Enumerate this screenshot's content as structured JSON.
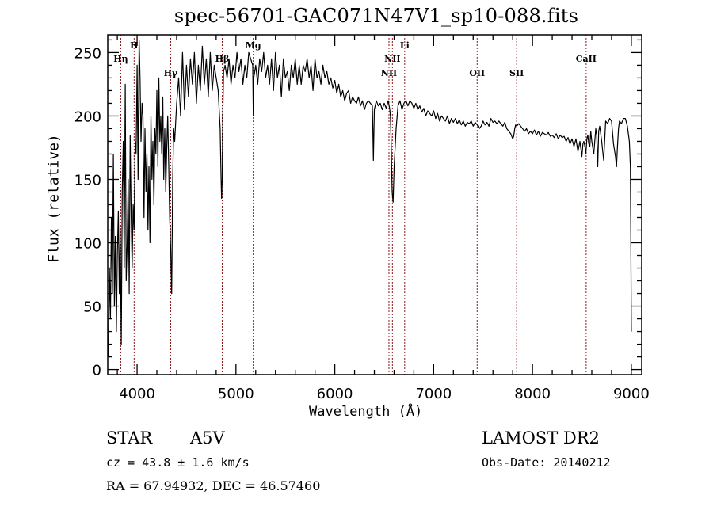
{
  "chart_data": {
    "type": "line",
    "title": "spec-56701-GAC071N47V1_sp10-088.fits",
    "xlabel": "Wavelength (Å)",
    "ylabel": "Flux (relative)",
    "xlim": [
      3703,
      9105
    ],
    "ylim": [
      -4,
      264
    ],
    "xticks": [
      4000,
      5000,
      6000,
      7000,
      8000,
      9000
    ],
    "yticks": [
      0,
      50,
      100,
      150,
      200,
      250
    ],
    "x_minor_step": 200,
    "y_minor_step": 10,
    "grid": false,
    "legend": "none",
    "line_color": "#000000",
    "marker_line_color": "#8b1a1a",
    "spectral_lines": [
      {
        "label": "Hη",
        "wavelength": 3835,
        "label_row": 2
      },
      {
        "label": "H",
        "wavelength": 3970,
        "label_row": 1
      },
      {
        "label": "Hγ",
        "wavelength": 4340,
        "label_row": 3
      },
      {
        "label": "Hβ",
        "wavelength": 4861,
        "label_row": 2
      },
      {
        "label": "Mg",
        "wavelength": 5175,
        "label_row": 1
      },
      {
        "label": "NII",
        "wavelength": 6548,
        "label_row": 3
      },
      {
        "label": "NII",
        "wavelength": 6583,
        "label_row": 2
      },
      {
        "label": "Li",
        "wavelength": 6707,
        "label_row": 1
      },
      {
        "label": "OII",
        "wavelength": 7440,
        "label_row": 3
      },
      {
        "label": "SII",
        "wavelength": 7840,
        "label_row": 3
      },
      {
        "label": "CaII",
        "wavelength": 8543,
        "label_row": 2
      }
    ],
    "series": [
      {
        "name": "flux",
        "x": [
          3710,
          3720,
          3730,
          3740,
          3750,
          3760,
          3770,
          3780,
          3790,
          3800,
          3810,
          3820,
          3830,
          3840,
          3850,
          3860,
          3870,
          3880,
          3890,
          3900,
          3910,
          3920,
          3930,
          3940,
          3950,
          3960,
          3970,
          3980,
          3990,
          4000,
          4010,
          4020,
          4030,
          4040,
          4050,
          4060,
          4070,
          4080,
          4090,
          4100,
          4110,
          4120,
          4130,
          4140,
          4150,
          4160,
          4170,
          4180,
          4190,
          4200,
          4210,
          4220,
          4230,
          4240,
          4250,
          4260,
          4270,
          4280,
          4290,
          4300,
          4310,
          4320,
          4330,
          4340,
          4350,
          4360,
          4370,
          4380,
          4400,
          4420,
          4440,
          4460,
          4480,
          4500,
          4520,
          4540,
          4560,
          4580,
          4600,
          4620,
          4640,
          4660,
          4680,
          4700,
          4720,
          4740,
          4760,
          4780,
          4800,
          4820,
          4840,
          4850,
          4855,
          4861,
          4867,
          4875,
          4890,
          4910,
          4930,
          4950,
          4970,
          4990,
          5010,
          5030,
          5050,
          5070,
          5090,
          5110,
          5130,
          5150,
          5170,
          5175,
          5180,
          5200,
          5220,
          5240,
          5260,
          5280,
          5300,
          5320,
          5340,
          5360,
          5380,
          5400,
          5420,
          5440,
          5460,
          5480,
          5500,
          5520,
          5540,
          5560,
          5580,
          5600,
          5620,
          5640,
          5660,
          5680,
          5700,
          5720,
          5740,
          5760,
          5780,
          5800,
          5820,
          5840,
          5860,
          5880,
          5900,
          5920,
          5940,
          5960,
          5980,
          6000,
          6020,
          6040,
          6060,
          6080,
          6100,
          6120,
          6140,
          6160,
          6180,
          6200,
          6220,
          6240,
          6260,
          6280,
          6300,
          6320,
          6340,
          6360,
          6380,
          6385,
          6390,
          6400,
          6420,
          6440,
          6460,
          6480,
          6500,
          6520,
          6540,
          6550,
          6556,
          6563,
          6570,
          6580,
          6590,
          6600,
          6620,
          6640,
          6660,
          6680,
          6700,
          6720,
          6740,
          6760,
          6780,
          6800,
          6820,
          6840,
          6860,
          6880,
          6900,
          6920,
          6940,
          6960,
          6980,
          7000,
          7020,
          7040,
          7060,
          7080,
          7100,
          7120,
          7140,
          7160,
          7180,
          7200,
          7220,
          7240,
          7260,
          7280,
          7300,
          7320,
          7340,
          7360,
          7380,
          7400,
          7420,
          7440,
          7460,
          7480,
          7500,
          7520,
          7540,
          7560,
          7580,
          7600,
          7620,
          7640,
          7660,
          7680,
          7700,
          7720,
          7740,
          7760,
          7780,
          7800,
          7810,
          7820,
          7830,
          7840,
          7860,
          7880,
          7900,
          7920,
          7940,
          7960,
          7980,
          8000,
          8020,
          8040,
          8060,
          8080,
          8100,
          8120,
          8140,
          8160,
          8180,
          8200,
          8220,
          8240,
          8260,
          8280,
          8300,
          8320,
          8340,
          8360,
          8380,
          8400,
          8420,
          8440,
          8460,
          8480,
          8500,
          8510,
          8520,
          8530,
          8540,
          8550,
          8560,
          8570,
          8580,
          8590,
          8600,
          8620,
          8640,
          8650,
          8660,
          8670,
          8680,
          8700,
          8720,
          8740,
          8760,
          8780,
          8800,
          8820,
          8840,
          8850,
          8860,
          8870,
          8880,
          8900,
          8920,
          8940,
          8960,
          8980,
          8990,
          8995,
          9000
        ],
        "y": [
          10,
          80,
          40,
          120,
          60,
          170,
          50,
          105,
          30,
          90,
          125,
          60,
          110,
          20,
          140,
          180,
          80,
          225,
          70,
          100,
          150,
          60,
          185,
          120,
          80,
          130,
          110,
          180,
          170,
          240,
          150,
          260,
          230,
          180,
          210,
          200,
          120,
          190,
          140,
          170,
          110,
          160,
          100,
          200,
          150,
          180,
          130,
          190,
          170,
          220,
          160,
          230,
          180,
          200,
          170,
          215,
          150,
          190,
          140,
          175,
          200,
          160,
          120,
          95,
          60,
          150,
          190,
          180,
          210,
          230,
          200,
          250,
          205,
          240,
          215,
          245,
          225,
          250,
          210,
          240,
          220,
          255,
          225,
          245,
          215,
          250,
          220,
          240,
          230,
          220,
          190,
          150,
          135,
          150,
          200,
          235,
          240,
          230,
          245,
          225,
          240,
          230,
          250,
          235,
          245,
          225,
          240,
          230,
          250,
          245,
          240,
          200,
          230,
          240,
          225,
          245,
          235,
          250,
          230,
          240,
          225,
          245,
          220,
          250,
          230,
          240,
          215,
          245,
          230,
          235,
          220,
          240,
          230,
          245,
          225,
          240,
          225,
          240,
          235,
          245,
          230,
          240,
          220,
          245,
          230,
          235,
          225,
          240,
          230,
          235,
          225,
          230,
          222,
          228,
          218,
          225,
          215,
          220,
          212,
          218,
          220,
          210,
          215,
          212,
          210,
          215,
          208,
          212,
          205,
          210,
          212,
          210,
          208,
          190,
          165,
          205,
          212,
          208,
          210,
          205,
          210,
          206,
          212,
          208,
          205,
          200,
          180,
          140,
          132,
          160,
          190,
          208,
          212,
          205,
          210,
          212,
          208,
          212,
          210,
          206,
          210,
          205,
          208,
          203,
          206,
          200,
          204,
          202,
          200,
          204,
          198,
          202,
          196,
          200,
          198,
          196,
          200,
          194,
          198,
          195,
          198,
          194,
          197,
          193,
          196,
          192,
          195,
          194,
          196,
          192,
          195,
          193,
          190,
          192,
          196,
          193,
          195,
          192,
          198,
          195,
          196,
          194,
          196,
          194,
          192,
          195,
          190,
          188,
          186,
          182,
          184,
          190,
          193,
          192,
          194,
          192,
          190,
          188,
          190,
          186,
          188,
          186,
          189,
          185,
          188,
          184,
          187,
          186,
          185,
          187,
          184,
          185,
          183,
          186,
          182,
          185,
          183,
          184,
          180,
          183,
          178,
          182,
          176,
          182,
          172,
          180,
          168,
          178,
          180,
          176,
          170,
          182,
          185,
          178,
          176,
          188,
          180,
          170,
          190,
          185,
          160,
          188,
          192,
          180,
          165,
          196,
          194,
          198,
          196,
          178,
          168,
          160,
          176,
          190,
          196,
          194,
          198,
          198,
          192,
          180,
          160,
          100,
          30
        ]
      }
    ]
  },
  "footer": {
    "object_type": "STAR",
    "subclass": "A5V",
    "survey": "LAMOST DR2",
    "cz": "cz = 43.8 ± 1.6 km/s",
    "obs_date": "Obs-Date: 20140212",
    "radec": "RA =  67.94932, DEC =  46.57460"
  }
}
